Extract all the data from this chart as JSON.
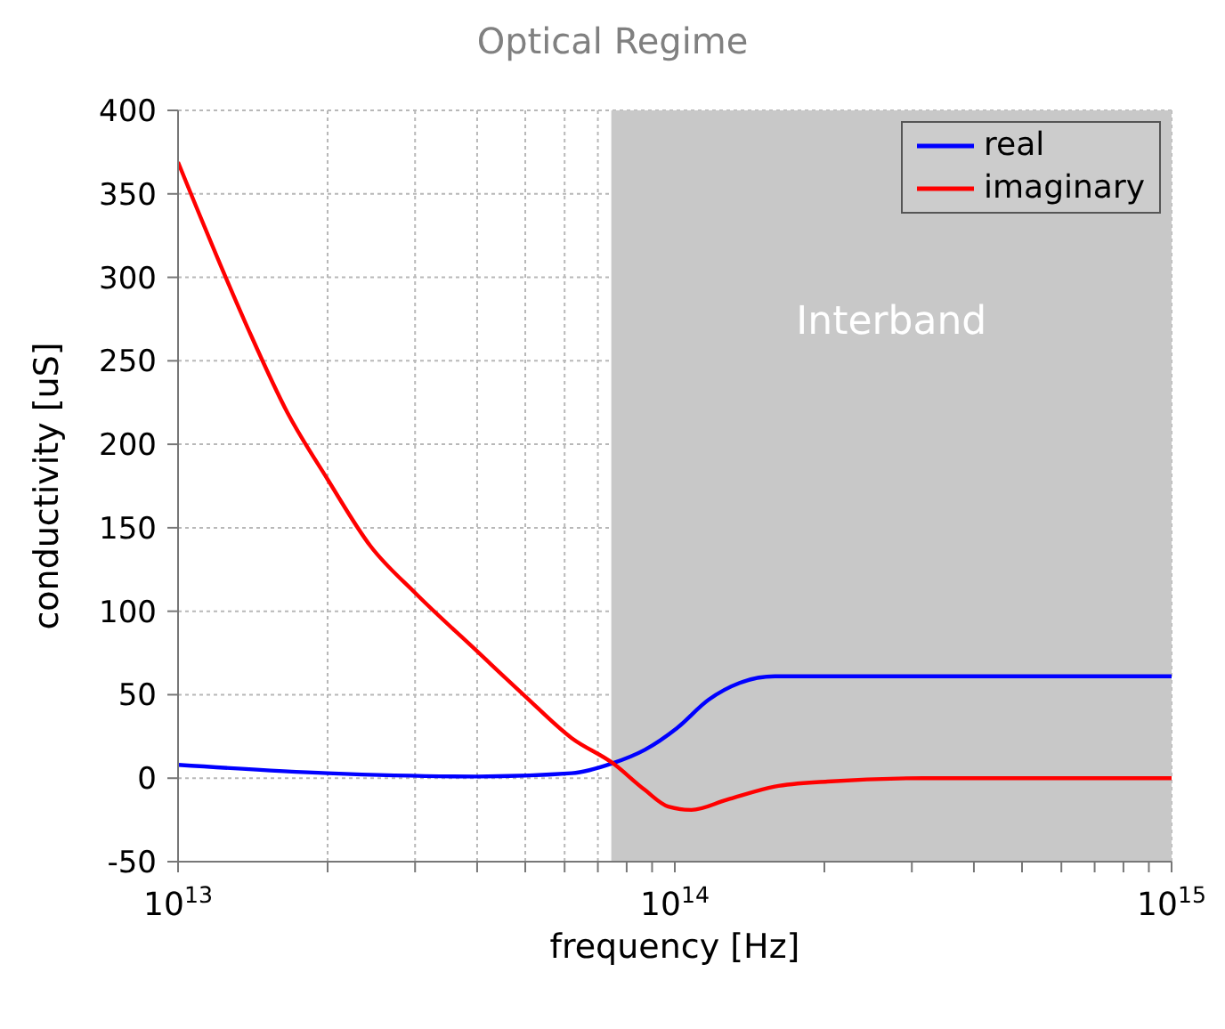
{
  "chart_data": {
    "type": "line",
    "title": "Optical Regime",
    "xlabel": "frequency [Hz]",
    "ylabel": "conductivity [uS]",
    "log": "x",
    "grid": true,
    "legend": "top right",
    "marker": "none",
    "line_style": "solid",
    "xlim": [
      10000000000000.0,
      1000000000000000.0
    ],
    "xticks": [
      {
        "value": 10000000000000.0,
        "label": "10$^{13}$"
      },
      {
        "value": 20000000000000.0,
        "label": null
      },
      {
        "value": 30000000000000.0,
        "label": null
      },
      {
        "value": 40000000000000.0,
        "label": null
      },
      {
        "value": 50000000000000.0,
        "label": null
      },
      {
        "value": 60000000000000.0,
        "label": null
      },
      {
        "value": 70000000000000.0,
        "label": null
      },
      {
        "value": 80000000000000.0,
        "label": null
      },
      {
        "value": 90000000000000.0,
        "label": null
      },
      {
        "value": 100000000000000.0,
        "label": "10$^{14}$"
      },
      {
        "value": 200000000000000.0,
        "label": null
      },
      {
        "value": 300000000000000.0,
        "label": null
      },
      {
        "value": 400000000000000.0,
        "label": null
      },
      {
        "value": 500000000000000.0,
        "label": null
      },
      {
        "value": 600000000000000.0,
        "label": null
      },
      {
        "value": 700000000000000.0,
        "label": null
      },
      {
        "value": 800000000000000.0,
        "label": null
      },
      {
        "value": 900000000000000.0,
        "label": null
      },
      {
        "value": 1000000000000000.0,
        "label": "10$^{15}$"
      }
    ],
    "ylim": [
      -50,
      400
    ],
    "yticks": [
      -50,
      0,
      50,
      100,
      150,
      200,
      250,
      300,
      350,
      400
    ],
    "bands": [
      {
        "axis": "x",
        "from": 74500000000000.0,
        "to": 1000000000000000.0,
        "label": "Interband",
        "color": "#c8c8c8"
      }
    ],
    "series": [
      {
        "name": "real",
        "color": "#0000ff",
        "x": [
          10000000000000.0,
          20000000000000.0,
          40000000000000.0,
          62000000000000.0,
          75000000000000.0,
          87000000000000.0,
          101000000000000.0,
          117000000000000.0,
          135000000000000.0,
          159000000000000.0,
          275000000000000.0,
          1000000000000000.0
        ],
        "values": [
          8,
          3,
          1,
          3,
          9,
          17,
          30,
          47,
          57,
          61,
          61,
          61
        ]
      },
      {
        "name": "imaginary",
        "color": "#ff0000",
        "x": [
          10000000000000.0,
          13700000000000.0,
          16600000000000.0,
          20000000000000.0,
          24400000000000.0,
          30000000000000.0,
          40000000000000.0,
          50000000000000.0,
          62000000000000.0,
          75000000000000.0,
          87000000000000.0,
          97000000000000.0,
          108000000000000.0,
          127000000000000.0,
          159000000000000.0,
          203000000000000.0,
          316000000000000.0,
          1000000000000000.0
        ],
        "values": [
          369,
          272,
          219,
          179,
          139,
          111,
          76,
          49,
          24,
          9,
          -7,
          -17,
          -19,
          -13,
          -5,
          -2,
          0,
          0
        ]
      }
    ]
  }
}
